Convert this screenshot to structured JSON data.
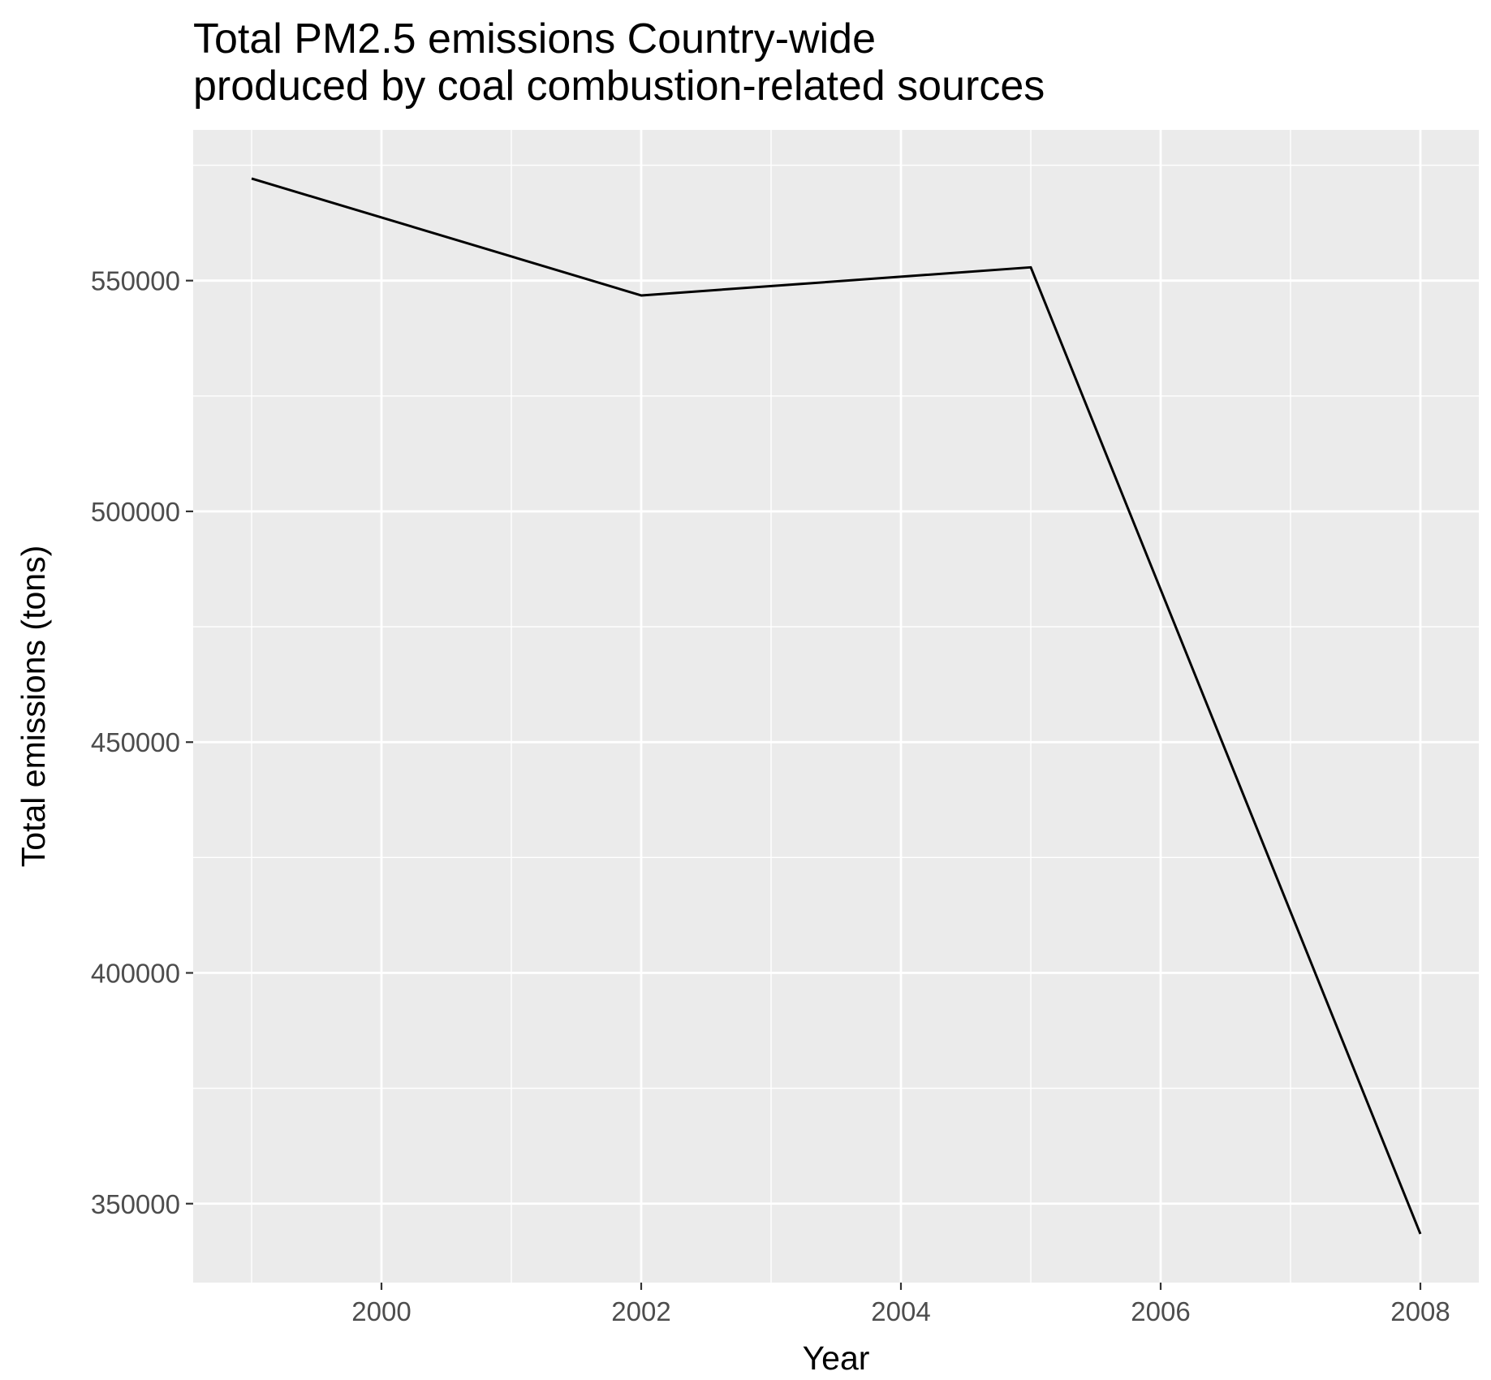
{
  "chart_data": {
    "type": "line",
    "title_lines": [
      "Total PM2.5 emissions Country-wide",
      "produced by coal combustion-related sources"
    ],
    "xlabel": "Year",
    "ylabel": "Total emissions (tons)",
    "x": [
      1999,
      2002,
      2005,
      2008
    ],
    "y": [
      572126,
      546789,
      552881,
      343432
    ],
    "x_ticks": [
      2000,
      2002,
      2004,
      2006,
      2008
    ],
    "y_ticks": [
      350000,
      400000,
      450000,
      500000,
      550000
    ],
    "xlim": [
      1998.55,
      2008.45
    ],
    "ylim": [
      332897,
      582661
    ],
    "grid": true,
    "legend": "none",
    "colors": {
      "panel_background": "#ebebeb",
      "grid_line": "#ffffff",
      "line": "#000000",
      "tick_label": "#4d4d4d"
    }
  }
}
